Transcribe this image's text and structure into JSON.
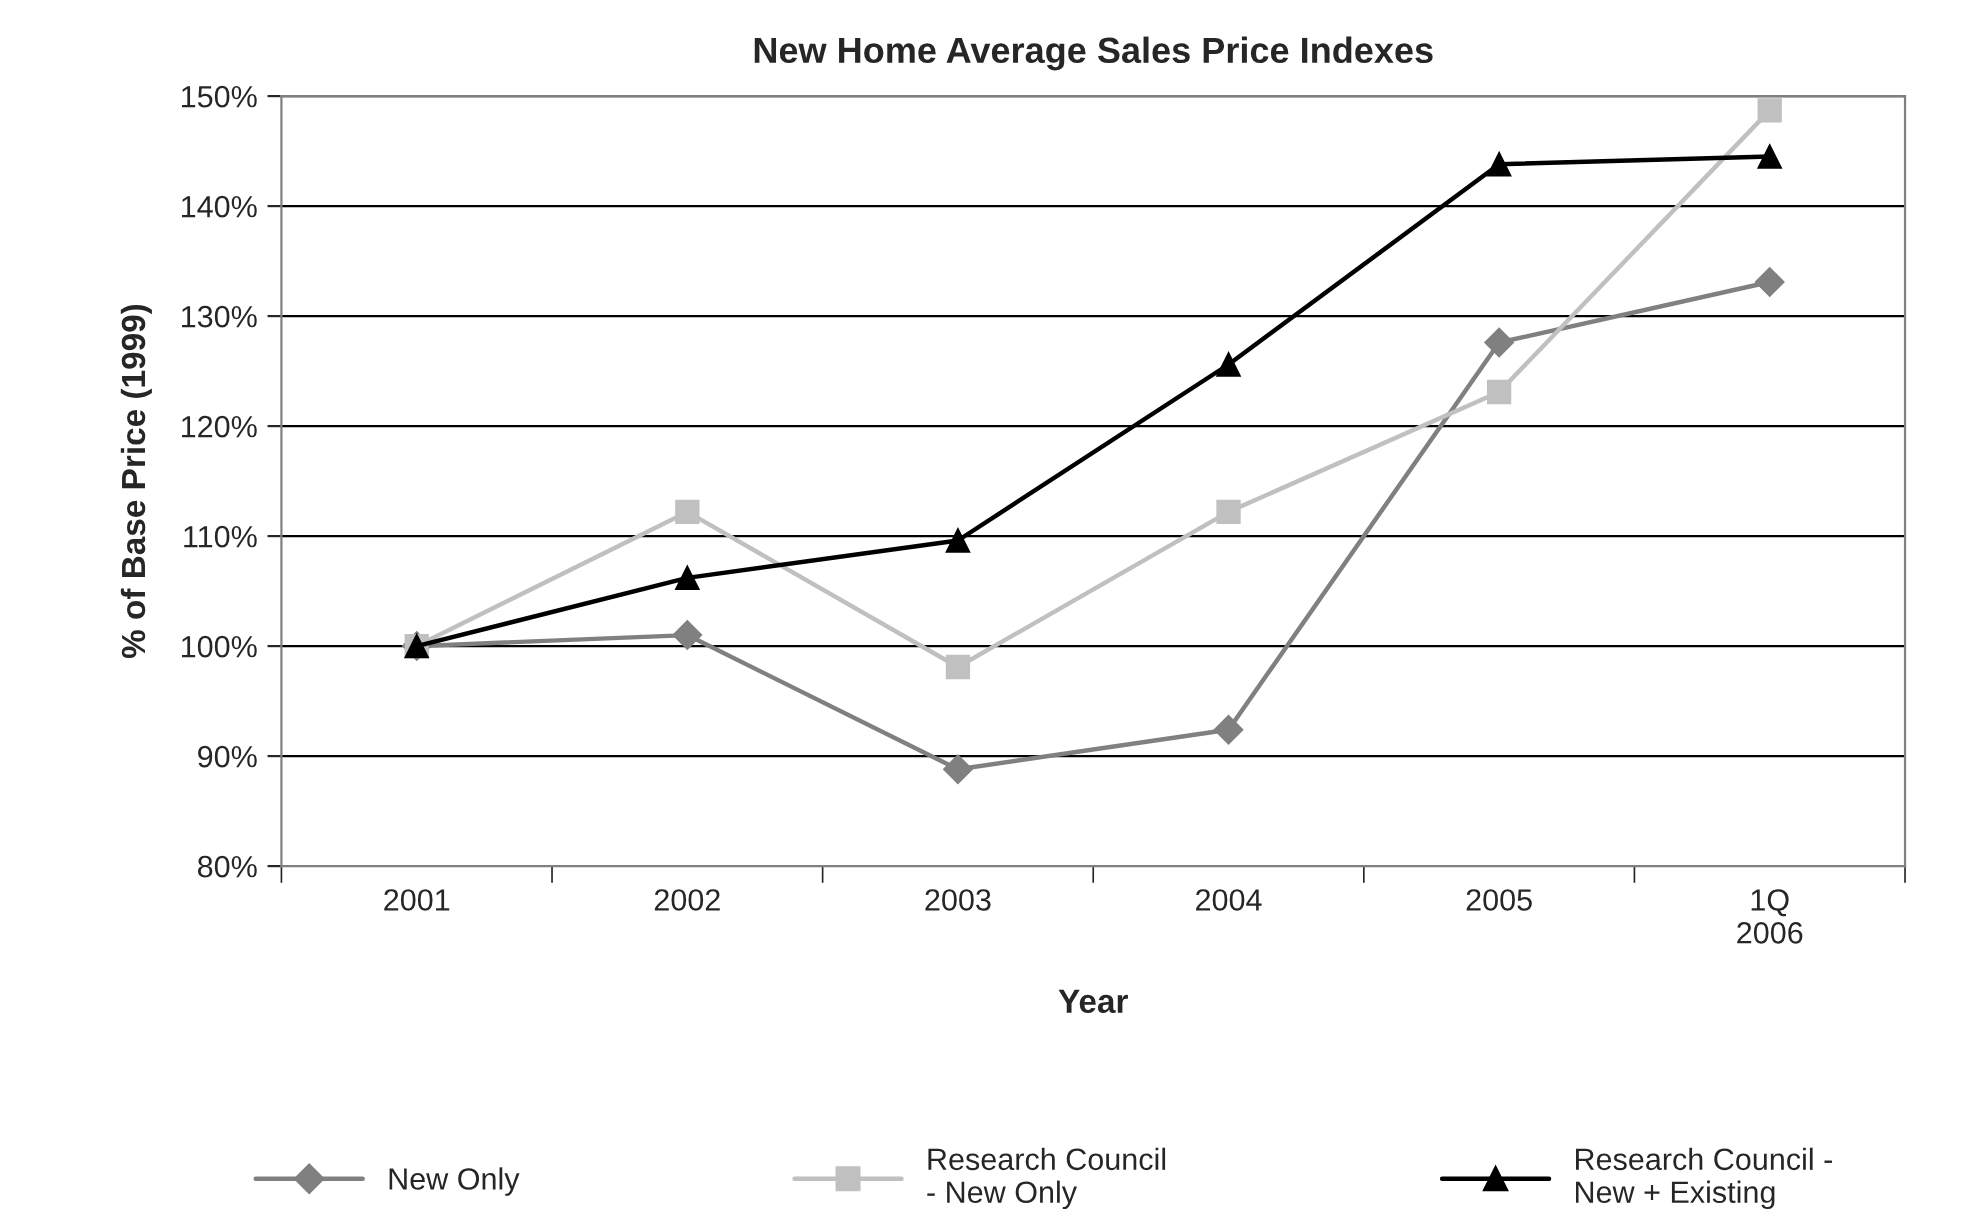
{
  "chart_data": {
    "type": "line",
    "title": "New Home Average Sales Price Indexes",
    "xlabel": "Year",
    "ylabel": "% of Base Price (1999)",
    "categories": [
      "2001",
      "2002",
      "2003",
      "2004",
      "2005",
      "1Q\n2006"
    ],
    "series": [
      {
        "name": "New Only",
        "color": "#808080",
        "marker": "diamond",
        "values": [
          100,
          101,
          88.8,
          92.4,
          127.6,
          133.1
        ]
      },
      {
        "name": "Research Council\n- New Only",
        "color": "#c0c0c0",
        "marker": "square",
        "values": [
          100,
          112.2,
          98.1,
          112.2,
          123.1,
          148.7
        ]
      },
      {
        "name": "Research Council -\nNew + Existing",
        "color": "#000000",
        "marker": "triangle",
        "values": [
          100,
          106.2,
          109.6,
          125.6,
          143.8,
          144.5
        ]
      }
    ],
    "ylim": [
      80,
      150
    ],
    "yticks": [
      {
        "value": 80,
        "label": "80%"
      },
      {
        "value": 90,
        "label": "90%"
      },
      {
        "value": 100,
        "label": "100%"
      },
      {
        "value": 110,
        "label": "110%"
      },
      {
        "value": 120,
        "label": "120%"
      },
      {
        "value": 130,
        "label": "130%"
      },
      {
        "value": 140,
        "label": "140%"
      },
      {
        "value": 150,
        "label": "150%"
      }
    ],
    "grid": "y",
    "legend": "bottom",
    "line_style": "solid"
  }
}
